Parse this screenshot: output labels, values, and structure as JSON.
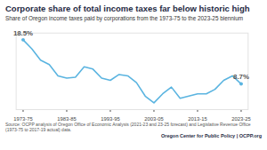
{
  "chart_data": {
    "type": "line",
    "title": "Corporate share of total income taxes far below historic high",
    "subtitle": "Share of Oregon income taxes paid by corporations from the 1973-75 to the 2023-25 biennium",
    "categories": [
      "1973-75",
      null,
      null,
      null,
      null,
      "1983-85",
      null,
      null,
      null,
      null,
      "1993-95",
      null,
      null,
      null,
      null,
      "2003-05",
      null,
      null,
      null,
      null,
      "2013-15",
      null,
      null,
      null,
      null,
      "2023-25"
    ],
    "values": [
      18.5,
      16.5,
      14.0,
      13.0,
      10.5,
      10.0,
      10.2,
      12.5,
      12.0,
      10.0,
      9.5,
      10.8,
      10.5,
      9.0,
      6.0,
      4.5,
      6.5,
      8.0,
      5.5,
      6.0,
      6.5,
      6.5,
      7.5,
      9.5,
      10.5,
      8.7
    ],
    "value_labels": [
      "18.5%",
      null,
      null,
      null,
      null,
      null,
      null,
      null,
      null,
      null,
      null,
      null,
      null,
      null,
      null,
      null,
      null,
      null,
      null,
      null,
      null,
      null,
      null,
      null,
      null,
      "8.7%"
    ],
    "data_labels": true,
    "color": "#5ab4e0",
    "marker": "circle",
    "ylim": [
      3,
      20
    ],
    "yticks": [],
    "tick_labels": "x",
    "annotations": [
      "Source: OCPP analysis of Oregon Office of Economic Analysis (2021-23 and 23-25 forecast) and Legislative Revenue Office (1973-75 to 2017-19 actual) data.",
      "Oregon Center for Public Policy | OCPP.org"
    ]
  }
}
